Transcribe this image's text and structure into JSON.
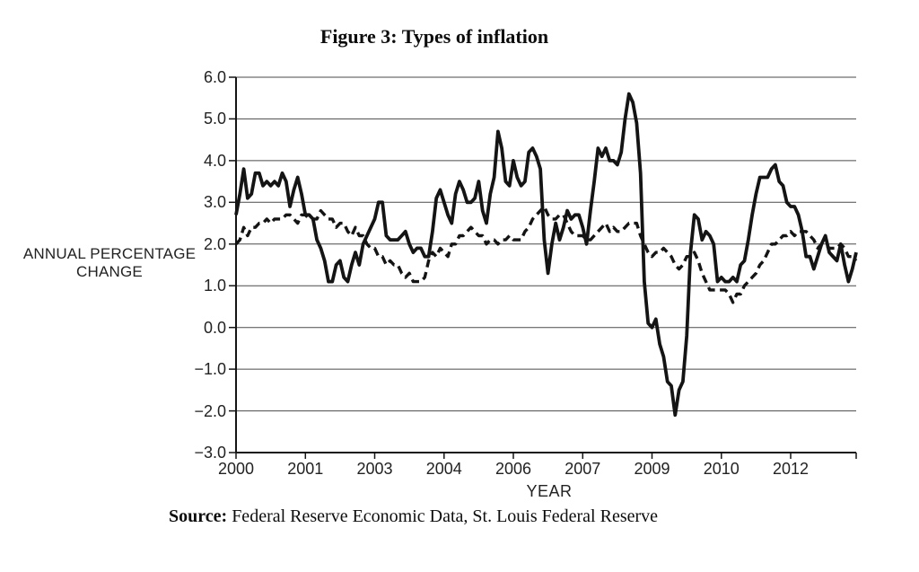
{
  "figure": {
    "title": "Figure 3: Types of inflation",
    "source_label": "Source:",
    "source_text": "Federal Reserve Economic Data, St. Louis Federal Reserve"
  },
  "chart_data": {
    "type": "line",
    "title": "Figure 3: Types of inflation",
    "x_axis_title": "YEAR",
    "y_axis_title_line1": "ANNUAL PERCENTAGE",
    "y_axis_title_line2": "CHANGE",
    "x_start": "2000-01",
    "x_end": "2013-06",
    "x_frequency": "monthly",
    "ylim": [
      -3.0,
      6.0
    ],
    "grid": "horizontal",
    "legend": "none",
    "y_ticks": [
      {
        "label": "6.0",
        "value": 6.0
      },
      {
        "label": "5.0",
        "value": 5.0
      },
      {
        "label": "4.0",
        "value": 4.0
      },
      {
        "label": "3.0",
        "value": 3.0
      },
      {
        "label": "2.0",
        "value": 2.0
      },
      {
        "label": "1.0",
        "value": 1.0
      },
      {
        "label": "0.0",
        "value": 0.0
      },
      {
        "label": "−1.0",
        "value": -1.0
      },
      {
        "label": "−2.0",
        "value": -2.0
      },
      {
        "label": "−3.0",
        "value": -3.0
      }
    ],
    "x_ticks": [
      {
        "label": "2000",
        "month": 0
      },
      {
        "label": "2001",
        "month": 18
      },
      {
        "label": "2003",
        "month": 36
      },
      {
        "label": "2004",
        "month": 54
      },
      {
        "label": "2006",
        "month": 72
      },
      {
        "label": "2007",
        "month": 90
      },
      {
        "label": "2009",
        "month": 108
      },
      {
        "label": "2010",
        "month": 126
      },
      {
        "label": "2012",
        "month": 144
      }
    ],
    "x_axis_end_tick_month": 161,
    "series": [
      {
        "name": "solid line",
        "line_style": "solid",
        "values": [
          2.7,
          3.2,
          3.8,
          3.1,
          3.2,
          3.7,
          3.7,
          3.4,
          3.5,
          3.4,
          3.5,
          3.4,
          3.7,
          3.5,
          2.9,
          3.3,
          3.6,
          3.2,
          2.7,
          2.7,
          2.6,
          2.1,
          1.9,
          1.6,
          1.1,
          1.1,
          1.5,
          1.6,
          1.2,
          1.1,
          1.5,
          1.8,
          1.5,
          2.0,
          2.2,
          2.4,
          2.6,
          3.0,
          3.0,
          2.2,
          2.1,
          2.1,
          2.1,
          2.2,
          2.3,
          2.0,
          1.8,
          1.9,
          1.9,
          1.7,
          1.7,
          2.3,
          3.1,
          3.3,
          3.0,
          2.7,
          2.5,
          3.2,
          3.5,
          3.3,
          3.0,
          3.0,
          3.1,
          3.5,
          2.8,
          2.5,
          3.2,
          3.6,
          4.7,
          4.3,
          3.5,
          3.4,
          4.0,
          3.6,
          3.4,
          3.5,
          4.2,
          4.3,
          4.1,
          3.8,
          2.1,
          1.3,
          2.0,
          2.5,
          2.1,
          2.4,
          2.8,
          2.6,
          2.7,
          2.7,
          2.4,
          2.0,
          2.8,
          3.5,
          4.3,
          4.1,
          4.3,
          4.0,
          4.0,
          3.9,
          4.2,
          5.0,
          5.6,
          5.4,
          4.9,
          3.7,
          1.1,
          0.1,
          0.0,
          0.2,
          -0.4,
          -0.7,
          -1.3,
          -1.4,
          -2.1,
          -1.5,
          -1.3,
          -0.2,
          1.8,
          2.7,
          2.6,
          2.1,
          2.3,
          2.2,
          2.0,
          1.1,
          1.2,
          1.1,
          1.1,
          1.2,
          1.1,
          1.5,
          1.6,
          2.1,
          2.7,
          3.2,
          3.6,
          3.6,
          3.6,
          3.8,
          3.9,
          3.5,
          3.4,
          3.0,
          2.9,
          2.9,
          2.7,
          2.3,
          1.7,
          1.7,
          1.4,
          1.7,
          2.0,
          2.2,
          1.8,
          1.7,
          1.6,
          2.0,
          1.5,
          1.1,
          1.4,
          1.8
        ]
      },
      {
        "name": "dashed line",
        "line_style": "dashed",
        "values": [
          2.0,
          2.1,
          2.4,
          2.2,
          2.4,
          2.4,
          2.5,
          2.5,
          2.6,
          2.5,
          2.6,
          2.6,
          2.6,
          2.7,
          2.7,
          2.6,
          2.5,
          2.7,
          2.7,
          2.6,
          2.6,
          2.6,
          2.8,
          2.7,
          2.6,
          2.6,
          2.4,
          2.5,
          2.5,
          2.3,
          2.2,
          2.4,
          2.2,
          2.2,
          2.0,
          1.9,
          1.9,
          1.7,
          1.7,
          1.5,
          1.6,
          1.5,
          1.5,
          1.3,
          1.2,
          1.3,
          1.1,
          1.1,
          1.1,
          1.2,
          1.6,
          1.8,
          1.7,
          1.9,
          1.8,
          1.7,
          2.0,
          2.0,
          2.2,
          2.2,
          2.3,
          2.4,
          2.3,
          2.2,
          2.2,
          2.0,
          2.1,
          2.1,
          2.0,
          2.1,
          2.1,
          2.2,
          2.1,
          2.1,
          2.1,
          2.3,
          2.4,
          2.6,
          2.7,
          2.8,
          2.9,
          2.7,
          2.6,
          2.6,
          2.7,
          2.7,
          2.5,
          2.3,
          2.2,
          2.2,
          2.2,
          2.1,
          2.1,
          2.2,
          2.3,
          2.4,
          2.5,
          2.3,
          2.4,
          2.3,
          2.3,
          2.4,
          2.5,
          2.5,
          2.5,
          2.2,
          2.0,
          1.8,
          1.7,
          1.8,
          1.8,
          1.9,
          1.8,
          1.7,
          1.5,
          1.4,
          1.5,
          1.7,
          1.7,
          1.8,
          1.6,
          1.3,
          1.1,
          0.9,
          0.9,
          0.9,
          0.9,
          0.9,
          0.8,
          0.6,
          0.8,
          0.8,
          1.0,
          1.1,
          1.2,
          1.3,
          1.5,
          1.6,
          1.8,
          2.0,
          2.0,
          2.1,
          2.2,
          2.2,
          2.3,
          2.2,
          2.3,
          2.3,
          2.3,
          2.2,
          2.1,
          1.9,
          2.0,
          2.0,
          1.9,
          1.9,
          1.9,
          2.0,
          1.9,
          1.7,
          1.7,
          1.6
        ]
      }
    ]
  }
}
